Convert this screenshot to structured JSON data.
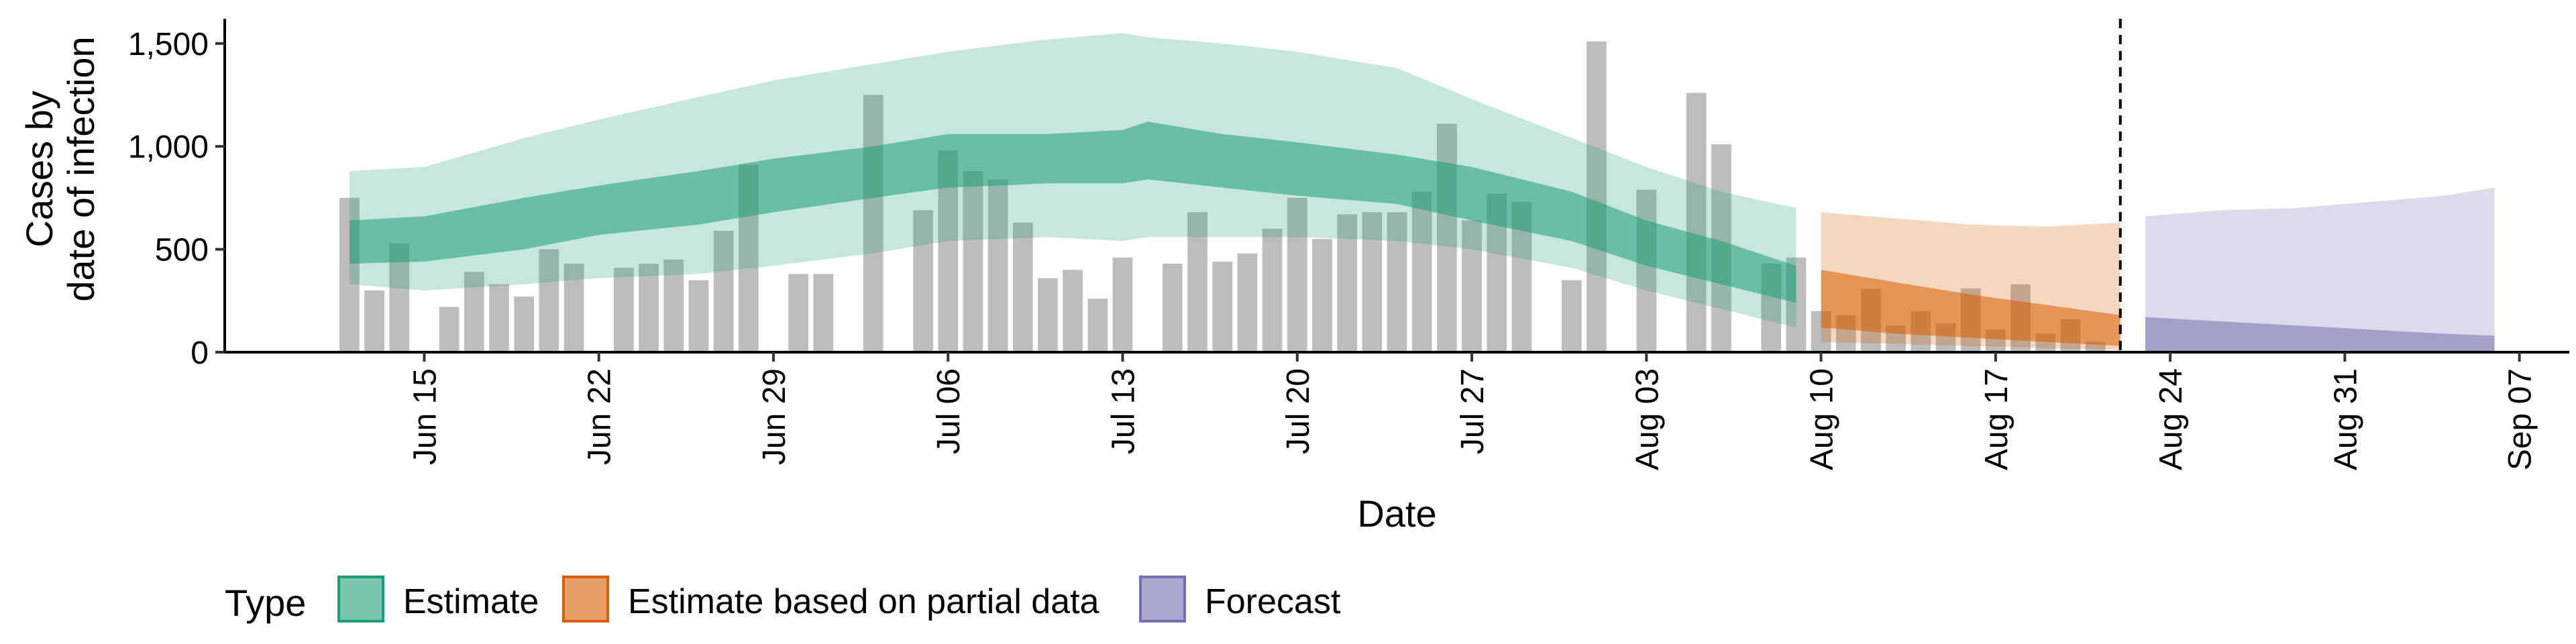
{
  "chart_data": {
    "type": "bar",
    "title": "",
    "xlabel": "Date",
    "ylabel": [
      "Cases by",
      "date of infection"
    ],
    "ylim": [
      0,
      1620
    ],
    "yticks": [
      0,
      500,
      1000,
      1500
    ],
    "ytick_labels": [
      "0",
      "500",
      "1,000",
      "1,500"
    ],
    "xlim": [
      "2020-06-07",
      "2020-09-09"
    ],
    "xticks": [
      "2020-06-15",
      "2020-06-22",
      "2020-06-29",
      "2020-07-06",
      "2020-07-13",
      "2020-07-20",
      "2020-07-27",
      "2020-08-03",
      "2020-08-10",
      "2020-08-17",
      "2020-08-24",
      "2020-08-31",
      "2020-09-07"
    ],
    "xtick_labels": [
      "Jun 15",
      "Jun 22",
      "Jun 29",
      "Jul 06",
      "Jul 13",
      "Jul 20",
      "Jul 27",
      "Aug 03",
      "Aug 10",
      "Aug 17",
      "Aug 24",
      "Aug 31",
      "Sep 07"
    ],
    "vline_date": "2020-08-22",
    "bars": [
      [
        "2020-06-12",
        750
      ],
      [
        "2020-06-13",
        300
      ],
      [
        "2020-06-14",
        530
      ],
      [
        "2020-06-16",
        220
      ],
      [
        "2020-06-17",
        390
      ],
      [
        "2020-06-18",
        330
      ],
      [
        "2020-06-19",
        270
      ],
      [
        "2020-06-20",
        500
      ],
      [
        "2020-06-21",
        430
      ],
      [
        "2020-06-23",
        410
      ],
      [
        "2020-06-24",
        430
      ],
      [
        "2020-06-25",
        450
      ],
      [
        "2020-06-26",
        350
      ],
      [
        "2020-06-27",
        590
      ],
      [
        "2020-06-28",
        910
      ],
      [
        "2020-06-30",
        380
      ],
      [
        "2020-07-01",
        380
      ],
      [
        "2020-07-03",
        1250
      ],
      [
        "2020-07-05",
        690
      ],
      [
        "2020-07-06",
        980
      ],
      [
        "2020-07-07",
        880
      ],
      [
        "2020-07-08",
        840
      ],
      [
        "2020-07-09",
        630
      ],
      [
        "2020-07-10",
        360
      ],
      [
        "2020-07-11",
        400
      ],
      [
        "2020-07-12",
        260
      ],
      [
        "2020-07-13",
        460
      ],
      [
        "2020-07-15",
        430
      ],
      [
        "2020-07-16",
        680
      ],
      [
        "2020-07-17",
        440
      ],
      [
        "2020-07-18",
        480
      ],
      [
        "2020-07-19",
        600
      ],
      [
        "2020-07-20",
        750
      ],
      [
        "2020-07-21",
        550
      ],
      [
        "2020-07-22",
        670
      ],
      [
        "2020-07-23",
        680
      ],
      [
        "2020-07-24",
        680
      ],
      [
        "2020-07-25",
        780
      ],
      [
        "2020-07-26",
        1110
      ],
      [
        "2020-07-27",
        640
      ],
      [
        "2020-07-28",
        770
      ],
      [
        "2020-07-29",
        730
      ],
      [
        "2020-07-31",
        350
      ],
      [
        "2020-08-01",
        1510
      ],
      [
        "2020-08-03",
        790
      ],
      [
        "2020-08-05",
        1260
      ],
      [
        "2020-08-06",
        1010
      ],
      [
        "2020-08-08",
        430
      ],
      [
        "2020-08-09",
        460
      ],
      [
        "2020-08-10",
        200
      ],
      [
        "2020-08-11",
        180
      ],
      [
        "2020-08-12",
        310
      ],
      [
        "2020-08-13",
        130
      ],
      [
        "2020-08-14",
        200
      ],
      [
        "2020-08-15",
        140
      ],
      [
        "2020-08-16",
        310
      ],
      [
        "2020-08-17",
        110
      ],
      [
        "2020-08-18",
        330
      ],
      [
        "2020-08-19",
        90
      ],
      [
        "2020-08-20",
        160
      ],
      [
        "2020-08-21",
        50
      ]
    ],
    "series": [
      {
        "name": "Estimate",
        "color": "#1b9e77",
        "x": [
          "2020-06-12",
          "2020-06-15",
          "2020-06-19",
          "2020-06-22",
          "2020-06-26",
          "2020-06-29",
          "2020-07-03",
          "2020-07-06",
          "2020-07-10",
          "2020-07-13",
          "2020-07-14",
          "2020-07-17",
          "2020-07-20",
          "2020-07-24",
          "2020-07-27",
          "2020-07-31",
          "2020-08-03",
          "2020-08-06",
          "2020-08-09"
        ],
        "outer_lower": [
          330,
          300,
          330,
          360,
          380,
          420,
          480,
          540,
          560,
          540,
          560,
          560,
          560,
          540,
          500,
          410,
          300,
          210,
          120
        ],
        "outer_upper": [
          880,
          900,
          1040,
          1130,
          1240,
          1320,
          1400,
          1460,
          1520,
          1550,
          1530,
          1500,
          1460,
          1380,
          1230,
          1040,
          900,
          780,
          700
        ],
        "inner_lower": [
          430,
          440,
          500,
          570,
          620,
          680,
          750,
          800,
          820,
          820,
          840,
          800,
          760,
          720,
          640,
          540,
          420,
          330,
          240
        ],
        "inner_upper": [
          640,
          660,
          750,
          810,
          880,
          940,
          1000,
          1060,
          1060,
          1080,
          1120,
          1060,
          1020,
          960,
          900,
          780,
          640,
          540,
          420
        ]
      },
      {
        "name": "Estimate based on partial data",
        "color": "#d95f02",
        "x": [
          "2020-08-10",
          "2020-08-13",
          "2020-08-16",
          "2020-08-19",
          "2020-08-22"
        ],
        "outer_lower": [
          50,
          40,
          30,
          20,
          10
        ],
        "outer_upper": [
          680,
          650,
          620,
          610,
          630
        ],
        "inner_lower": [
          120,
          90,
          70,
          50,
          30
        ],
        "inner_upper": [
          400,
          340,
          280,
          230,
          180
        ]
      },
      {
        "name": "Forecast",
        "color": "#7570b3",
        "x": [
          "2020-08-23",
          "2020-08-26",
          "2020-08-29",
          "2020-09-01",
          "2020-09-04",
          "2020-09-06"
        ],
        "outer_lower": [
          0,
          0,
          0,
          0,
          0,
          0
        ],
        "outer_upper": [
          660,
          690,
          700,
          730,
          760,
          800
        ],
        "inner_lower": [
          0,
          0,
          0,
          0,
          0,
          0
        ],
        "inner_upper": [
          170,
          150,
          130,
          110,
          90,
          80
        ]
      }
    ],
    "legend": {
      "title": "Type",
      "placement": "bottom",
      "items": [
        "Estimate",
        "Estimate based on partial data",
        "Forecast"
      ]
    }
  }
}
